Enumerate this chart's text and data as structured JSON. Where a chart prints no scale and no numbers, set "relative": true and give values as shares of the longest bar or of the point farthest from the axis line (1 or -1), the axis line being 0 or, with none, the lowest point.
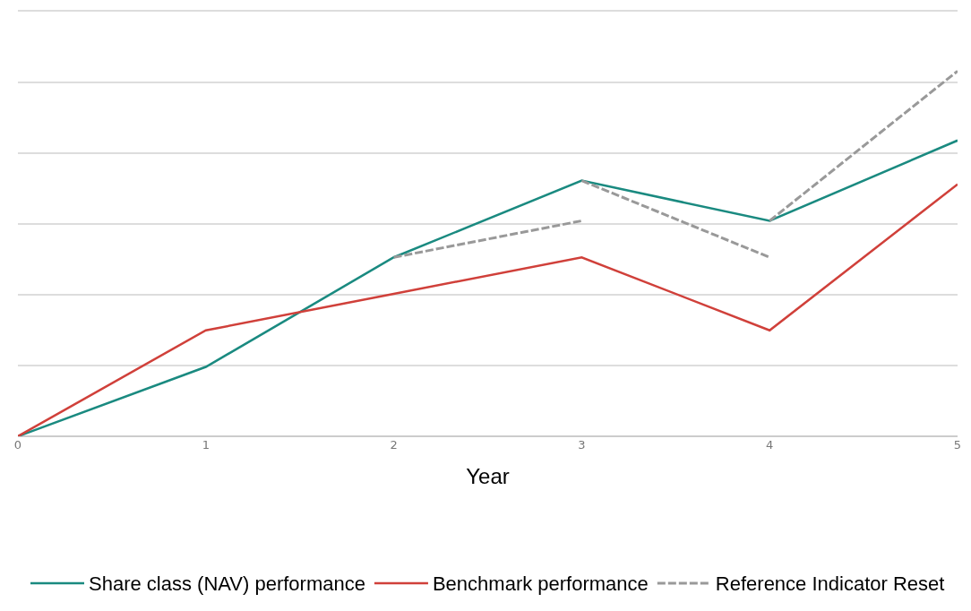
{
  "chart_data": {
    "type": "line",
    "relative": true,
    "xlabel": "Year",
    "x": [
      0,
      1,
      2,
      3,
      4,
      5
    ],
    "xlim": [
      0,
      5
    ],
    "xticks": [
      0,
      1,
      2,
      3,
      4,
      5
    ],
    "series": [
      {
        "name": "Share class (NAV) performance",
        "color": "#1a8a80",
        "values": [
          0,
          0.19,
          0.49,
          0.7,
          0.59,
          0.81
        ]
      },
      {
        "name": "Benchmark performance",
        "color": "#d0403a",
        "values": [
          0,
          0.29,
          0.39,
          0.49,
          0.29,
          0.69
        ]
      },
      {
        "name": "Reference Indicator Reset",
        "color": "#999999",
        "line_style": "dashed",
        "x": [
          2,
          3
        ],
        "values": [
          0.49,
          0.59
        ]
      },
      {
        "color": "#999999",
        "line_style": "dashed",
        "x": [
          3,
          4
        ],
        "values": [
          0.7,
          0.49
        ]
      },
      {
        "color": "#999999",
        "line_style": "dashed",
        "x": [
          4,
          5
        ],
        "values": [
          0.59,
          1.0
        ]
      }
    ],
    "grid": "y",
    "legend": "bottom",
    "marker": "none"
  }
}
